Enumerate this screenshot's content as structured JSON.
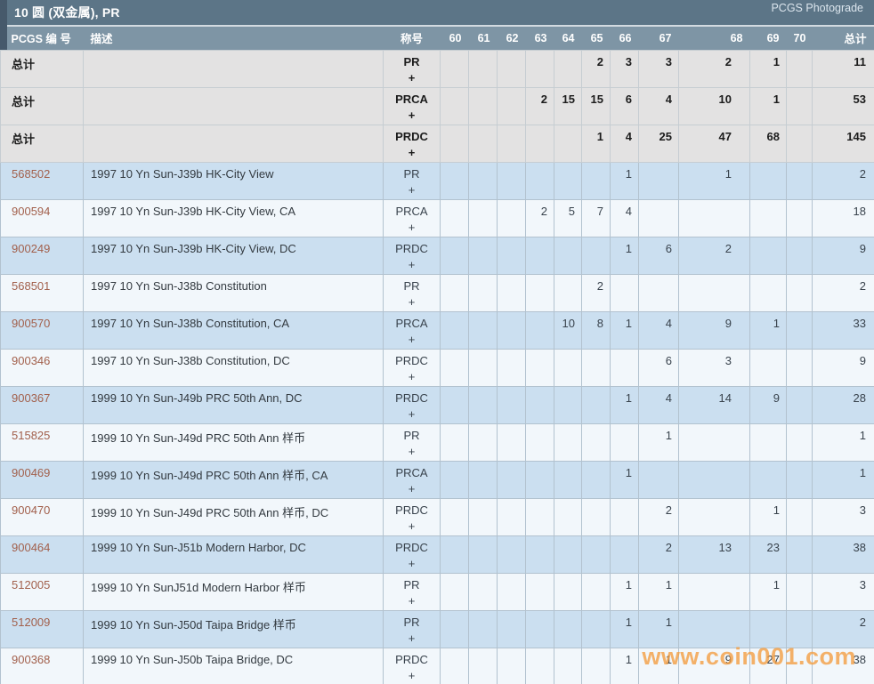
{
  "title_bar": {
    "title": "10 圆 (双金属), PR",
    "link": "PCGS Photograde"
  },
  "table": {
    "headers": {
      "number": "PCGS 编 号",
      "description": "描述",
      "designation": "称号",
      "total": "总计"
    },
    "grade_columns": [
      "60",
      "61",
      "62",
      "63",
      "64",
      "65",
      "66",
      "67",
      "68",
      "69",
      "70"
    ],
    "totals_label": "总计",
    "totals_rows": [
      {
        "designation": "PR",
        "plus": "+",
        "grades": [
          "",
          "",
          "",
          "",
          "",
          "2",
          "3",
          "3",
          "2",
          "1",
          ""
        ],
        "total": "11"
      },
      {
        "designation": "PRCA",
        "plus": "+",
        "grades": [
          "",
          "",
          "",
          "2",
          "15",
          "15",
          "6",
          "4",
          "10",
          "1",
          ""
        ],
        "total": "53"
      },
      {
        "designation": "PRDC",
        "plus": "+",
        "grades": [
          "",
          "",
          "",
          "",
          "",
          "1",
          "4",
          "25",
          "47",
          "68",
          ""
        ],
        "total": "145"
      }
    ],
    "rows": [
      {
        "number": "568502",
        "description": "1997 10 Yn Sun-J39b HK-City View",
        "designation": "PR",
        "plus": "+",
        "grades": [
          "",
          "",
          "",
          "",
          "",
          "",
          "1",
          "",
          "1",
          "",
          ""
        ],
        "total": "2"
      },
      {
        "number": "900594",
        "description": "1997 10 Yn Sun-J39b HK-City View, CA",
        "designation": "PRCA",
        "plus": "+",
        "grades": [
          "",
          "",
          "",
          "2",
          "5",
          "7",
          "4",
          "",
          "",
          "",
          ""
        ],
        "total": "18"
      },
      {
        "number": "900249",
        "description": "1997 10 Yn Sun-J39b HK-City View, DC",
        "designation": "PRDC",
        "plus": "+",
        "grades": [
          "",
          "",
          "",
          "",
          "",
          "",
          "1",
          "6",
          "2",
          "",
          ""
        ],
        "total": "9"
      },
      {
        "number": "568501",
        "description": "1997 10 Yn Sun-J38b Constitution",
        "designation": "PR",
        "plus": "+",
        "grades": [
          "",
          "",
          "",
          "",
          "",
          "2",
          "",
          "",
          "",
          "",
          ""
        ],
        "total": "2"
      },
      {
        "number": "900570",
        "description": "1997 10 Yn Sun-J38b Constitution, CA",
        "designation": "PRCA",
        "plus": "+",
        "grades": [
          "",
          "",
          "",
          "",
          "10",
          "8",
          "1",
          "4",
          "9",
          "1",
          ""
        ],
        "total": "33"
      },
      {
        "number": "900346",
        "description": "1997 10 Yn Sun-J38b Constitution, DC",
        "designation": "PRDC",
        "plus": "+",
        "grades": [
          "",
          "",
          "",
          "",
          "",
          "",
          "",
          "6",
          "3",
          "",
          ""
        ],
        "total": "9"
      },
      {
        "number": "900367",
        "description": "1999 10 Yn Sun-J49b PRC 50th Ann, DC",
        "designation": "PRDC",
        "plus": "+",
        "grades": [
          "",
          "",
          "",
          "",
          "",
          "",
          "1",
          "4",
          "14",
          "9",
          ""
        ],
        "total": "28"
      },
      {
        "number": "515825",
        "description": "1999 10 Yn Sun-J49d PRC 50th Ann 样币",
        "designation": "PR",
        "plus": "+",
        "grades": [
          "",
          "",
          "",
          "",
          "",
          "",
          "",
          "1",
          "",
          "",
          ""
        ],
        "total": "1"
      },
      {
        "number": "900469",
        "description": "1999 10 Yn Sun-J49d PRC 50th Ann 样币, CA",
        "designation": "PRCA",
        "plus": "+",
        "grades": [
          "",
          "",
          "",
          "",
          "",
          "",
          "1",
          "",
          "",
          "",
          ""
        ],
        "total": "1"
      },
      {
        "number": "900470",
        "description": "1999 10 Yn Sun-J49d PRC 50th Ann 样币, DC",
        "designation": "PRDC",
        "plus": "+",
        "grades": [
          "",
          "",
          "",
          "",
          "",
          "",
          "",
          "2",
          "",
          "1",
          ""
        ],
        "total": "3"
      },
      {
        "number": "900464",
        "description": "1999 10 Yn Sun-J51b Modern Harbor, DC",
        "designation": "PRDC",
        "plus": "+",
        "grades": [
          "",
          "",
          "",
          "",
          "",
          "",
          "",
          "2",
          "13",
          "23",
          ""
        ],
        "total": "38"
      },
      {
        "number": "512005",
        "description": "1999 10 Yn SunJ51d Modern Harbor 样币",
        "designation": "PR",
        "plus": "+",
        "grades": [
          "",
          "",
          "",
          "",
          "",
          "",
          "1",
          "1",
          "",
          "1",
          ""
        ],
        "total": "3"
      },
      {
        "number": "512009",
        "description": "1999 10 Yn Sun-J50d Taipa Bridge 样币",
        "designation": "PR",
        "plus": "+",
        "grades": [
          "",
          "",
          "",
          "",
          "",
          "",
          "1",
          "1",
          "",
          "",
          ""
        ],
        "total": "2"
      },
      {
        "number": "900368",
        "description": "1999 10 Yn Sun-J50b Taipa Bridge, DC",
        "designation": "PRDC",
        "plus": "+",
        "grades": [
          "",
          "",
          "",
          "",
          "",
          "",
          "1",
          "1",
          "9",
          "27",
          ""
        ],
        "total": "38"
      }
    ]
  },
  "watermark": {
    "text": "www.coin001.com"
  },
  "colors": {
    "title_bar_bg": "#5c7587",
    "header_bg": "#7e95a5",
    "accent_strip": "#46596b",
    "totals_row_bg": "#e3e2e2",
    "row_blue_bg": "#cbdff0",
    "row_light_bg": "#f2f7fb",
    "pcgs_number_link": "#a2604c",
    "watermark_orange": "#f49d3f"
  }
}
